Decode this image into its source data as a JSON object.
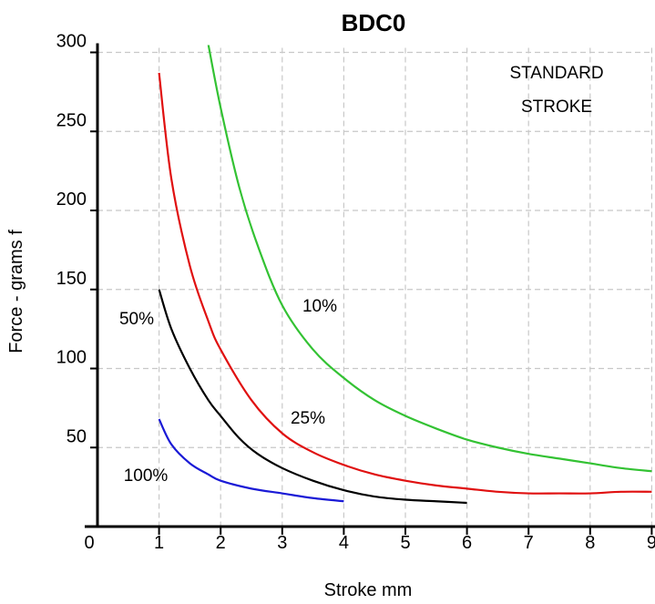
{
  "chart_data": {
    "type": "line",
    "title": "BDC0",
    "xlabel": "Stroke mm",
    "ylabel": "Force - grams f",
    "xlim": [
      0,
      9
    ],
    "ylim": [
      0,
      300
    ],
    "x_ticks": [
      "0",
      "1",
      "2",
      "3",
      "4",
      "5",
      "6",
      "7",
      "8",
      "9"
    ],
    "y_ticks": [
      "50",
      "100",
      "150",
      "200",
      "250",
      "300"
    ],
    "grid": true,
    "annotation": [
      "STANDARD",
      "STROKE"
    ],
    "series": [
      {
        "name": "10%",
        "color": "#33c233",
        "x": [
          1.8,
          2.0,
          2.3,
          2.6,
          3.0,
          3.5,
          4.0,
          4.5,
          5.0,
          5.5,
          6.0,
          6.5,
          7.0,
          7.5,
          8.0,
          8.5,
          9.0
        ],
        "y": [
          305,
          265,
          215,
          178,
          140,
          112,
          94,
          80,
          70,
          62,
          55,
          50,
          46,
          43,
          40,
          37,
          35
        ]
      },
      {
        "name": "25%",
        "color": "#e01010",
        "x": [
          1.0,
          1.2,
          1.5,
          1.8,
          2.0,
          2.5,
          3.0,
          3.5,
          4.0,
          4.5,
          5.0,
          5.5,
          6.0,
          6.5,
          7.0,
          7.5,
          8.0,
          8.5,
          9.0
        ],
        "y": [
          287,
          220,
          165,
          130,
          112,
          80,
          59,
          47,
          39,
          33,
          29,
          26,
          24,
          22,
          21,
          21,
          21,
          22,
          22
        ]
      },
      {
        "name": "50%",
        "color": "#000000",
        "x": [
          1.0,
          1.2,
          1.5,
          1.8,
          2.0,
          2.3,
          2.6,
          3.0,
          3.5,
          4.0,
          4.5,
          5.0,
          5.5,
          6.0
        ],
        "y": [
          150,
          125,
          100,
          80,
          70,
          56,
          46,
          37,
          29,
          23,
          19,
          17,
          16,
          15
        ]
      },
      {
        "name": "100%",
        "color": "#1a1ad6",
        "x": [
          1.0,
          1.2,
          1.5,
          1.8,
          2.0,
          2.5,
          3.0,
          3.5,
          4.0
        ],
        "y": [
          68,
          52,
          40,
          33,
          29,
          24,
          21,
          18,
          16
        ]
      }
    ],
    "series_labels": [
      "10%",
      "25%",
      "50%",
      "100%"
    ]
  }
}
